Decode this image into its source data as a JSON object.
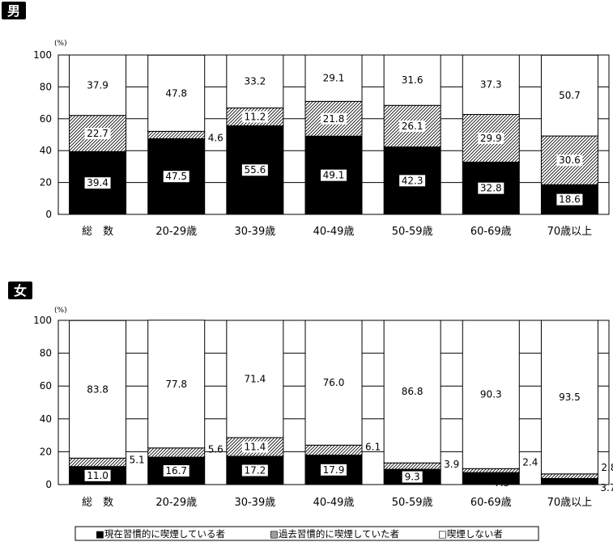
{
  "chart_data": [
    {
      "type": "bar",
      "stacked": true,
      "normalized": true,
      "title": "男",
      "unit_label": "(%)",
      "ylim": [
        0,
        100
      ],
      "yticks": [
        0,
        20,
        40,
        60,
        80,
        100
      ],
      "gridlines": true,
      "categories": [
        "総　数",
        "20-29歳",
        "30-39歳",
        "40-49歳",
        "50-59歳",
        "60-69歳",
        "70歳以上"
      ],
      "series": [
        {
          "name": "現在習慣的に喫煙している者",
          "fill": "solid-black",
          "values": [
            39.4,
            47.5,
            55.6,
            49.1,
            42.3,
            32.8,
            18.6
          ]
        },
        {
          "name": "過去習慣的に喫煙していた者",
          "fill": "hatched",
          "values": [
            22.7,
            4.6,
            11.2,
            21.8,
            26.1,
            29.9,
            30.6
          ]
        },
        {
          "name": "喫煙しない者",
          "fill": "white",
          "values": [
            37.9,
            47.8,
            33.2,
            29.1,
            31.6,
            37.3,
            50.7
          ]
        }
      ],
      "labels": [
        [
          "39.4",
          "47.5",
          "55.6",
          "49.1",
          "42.3",
          "32.8",
          "18.6"
        ],
        [
          "22.7",
          "4.6",
          "11.2",
          "21.8",
          "26.1",
          "29.9",
          "30.6"
        ],
        [
          "37.9",
          "47.8",
          "33.2",
          "29.1",
          "31.6",
          "37.3",
          "50.7"
        ]
      ]
    },
    {
      "type": "bar",
      "stacked": true,
      "normalized": true,
      "title": "女",
      "unit_label": "(%)",
      "ylim": [
        0,
        100
      ],
      "yticks": [
        0,
        20,
        40,
        60,
        80,
        100
      ],
      "gridlines": true,
      "categories": [
        "総　数",
        "20-29歳",
        "30-39歳",
        "40-49歳",
        "50-59歳",
        "60-69歳",
        "70歳以上"
      ],
      "series": [
        {
          "name": "現在習慣的に喫煙している者",
          "fill": "solid-black",
          "values": [
            11.0,
            16.7,
            17.2,
            17.9,
            9.3,
            7.3,
            3.7
          ]
        },
        {
          "name": "過去習慣的に喫煙していた者",
          "fill": "hatched",
          "values": [
            5.1,
            5.6,
            11.4,
            6.1,
            3.9,
            2.4,
            2.8
          ]
        },
        {
          "name": "喫煙しない者",
          "fill": "white",
          "values": [
            83.8,
            77.8,
            71.4,
            76.0,
            86.8,
            90.3,
            93.5
          ]
        }
      ],
      "labels": [
        [
          "11.0",
          "16.7",
          "17.2",
          "17.9",
          "9.3",
          "7.3",
          "3.7"
        ],
        [
          "5.1",
          "5.6",
          "11.4",
          "6.1",
          "3.9",
          "2.4",
          "2.8"
        ],
        [
          "83.8",
          "77.8",
          "71.4",
          "76.0",
          "86.8",
          "90.3",
          "93.5"
        ]
      ]
    }
  ],
  "legend": {
    "placement": "bottom",
    "items": [
      {
        "label": "■現在習慣的に喫煙している者"
      },
      {
        "label": "▨過去習慣的に喫煙していた者"
      },
      {
        "label": "□喫煙しない者"
      }
    ]
  }
}
